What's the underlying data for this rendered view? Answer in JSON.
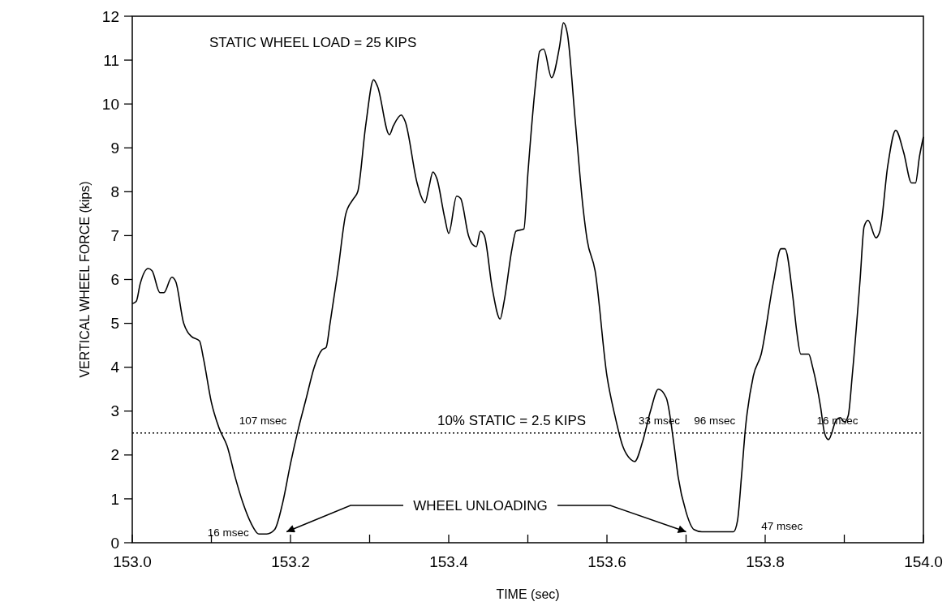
{
  "chart_data": {
    "type": "line",
    "xlabel": "TIME (sec)",
    "ylabel": "VERTICAL WHEEL FORCE (kips)",
    "xlim": [
      153.0,
      154.0
    ],
    "xticks": [
      {
        "value": 153.0,
        "label": "153.0"
      },
      {
        "value": 153.1,
        "label": null
      },
      {
        "value": 153.2,
        "label": "153.2"
      },
      {
        "value": 153.3,
        "label": null
      },
      {
        "value": 153.4,
        "label": "153.4"
      },
      {
        "value": 153.5,
        "label": null
      },
      {
        "value": 153.6,
        "label": "153.6"
      },
      {
        "value": 153.7,
        "label": null
      },
      {
        "value": 153.8,
        "label": "153.8"
      },
      {
        "value": 153.9,
        "label": null
      },
      {
        "value": 154.0,
        "label": "154.0"
      }
    ],
    "ylim": [
      0,
      12
    ],
    "yticks": [
      0,
      1,
      2,
      3,
      4,
      5,
      6,
      7,
      8,
      9,
      10,
      11,
      12
    ],
    "grid": false,
    "marker": "none",
    "line_style": "solid",
    "series": [
      {
        "color": "#000000",
        "x": [
          153.0,
          153.005,
          153.01,
          153.02,
          153.025,
          153.035,
          153.04,
          153.05,
          153.055,
          153.065,
          153.07,
          153.075,
          153.085,
          153.09,
          153.1,
          153.11,
          153.12,
          153.13,
          153.14,
          153.15,
          153.16,
          153.17,
          153.18,
          153.19,
          153.2,
          153.21,
          153.22,
          153.23,
          153.24,
          153.245,
          153.25,
          153.26,
          153.27,
          153.28,
          153.285,
          153.295,
          153.305,
          153.31,
          153.325,
          153.33,
          153.34,
          153.345,
          153.36,
          153.365,
          153.37,
          153.375,
          153.38,
          153.385,
          153.395,
          153.4,
          153.41,
          153.415,
          153.425,
          153.43,
          153.435,
          153.44,
          153.445,
          153.455,
          153.465,
          153.47,
          153.48,
          153.485,
          153.495,
          153.5,
          153.51,
          153.515,
          153.52,
          153.53,
          153.54,
          153.545,
          153.55,
          153.56,
          153.57,
          153.575,
          153.585,
          153.6,
          153.61,
          153.62,
          153.63,
          153.635,
          153.645,
          153.655,
          153.665,
          153.675,
          153.685,
          153.69,
          153.7,
          153.71,
          153.72,
          153.76,
          153.765,
          153.77,
          153.775,
          153.785,
          153.795,
          153.81,
          153.82,
          153.825,
          153.835,
          153.84,
          153.845,
          153.855,
          153.86,
          153.87,
          153.875,
          153.88,
          153.89,
          153.895,
          153.9,
          153.905,
          153.91,
          153.92,
          153.925,
          153.93,
          153.94,
          153.945,
          153.955,
          153.965,
          153.975,
          153.985,
          153.99,
          153.995,
          154.0
        ],
        "values": [
          5.45,
          5.5,
          5.9,
          6.25,
          6.2,
          5.7,
          5.7,
          6.05,
          5.95,
          5.0,
          4.8,
          4.7,
          4.6,
          4.2,
          3.2,
          2.6,
          2.2,
          1.5,
          0.9,
          0.45,
          0.2,
          0.2,
          0.3,
          0.9,
          1.8,
          2.6,
          3.3,
          4.0,
          4.4,
          4.45,
          5.0,
          6.2,
          7.5,
          7.85,
          8.0,
          9.5,
          10.55,
          10.4,
          9.3,
          9.5,
          9.75,
          9.6,
          8.2,
          7.9,
          7.75,
          8.1,
          8.45,
          8.3,
          7.4,
          7.05,
          7.9,
          7.85,
          7.0,
          6.8,
          6.75,
          7.1,
          7.0,
          5.8,
          5.1,
          5.5,
          6.7,
          7.1,
          7.15,
          8.4,
          10.5,
          11.2,
          11.25,
          10.6,
          11.3,
          11.85,
          11.6,
          9.6,
          7.6,
          6.9,
          6.2,
          3.8,
          2.9,
          2.2,
          1.9,
          1.85,
          2.3,
          3.0,
          3.5,
          3.3,
          2.2,
          1.5,
          0.7,
          0.3,
          0.25,
          0.25,
          0.5,
          1.5,
          2.6,
          3.8,
          4.3,
          5.9,
          6.7,
          6.7,
          5.6,
          4.8,
          4.3,
          4.3,
          4.0,
          3.1,
          2.5,
          2.35,
          2.8,
          2.85,
          2.75,
          2.9,
          3.8,
          6.0,
          7.2,
          7.35,
          6.95,
          7.1,
          8.6,
          9.4,
          8.9,
          8.2,
          8.2,
          8.8,
          9.25
        ]
      }
    ],
    "ref_lines": [
      {
        "axis": "y",
        "value": 2.5,
        "label": "10% STATIC = 2.5 KIPS",
        "line_style": "dotted",
        "color": "#000000"
      }
    ],
    "annotations": [
      "STATIC WHEEL LOAD = 25 KIPS",
      "107 msec",
      "16 msec",
      "33 msec",
      "96 msec",
      "16 msec",
      "47 msec",
      "WHEEL UNLOADING"
    ]
  }
}
